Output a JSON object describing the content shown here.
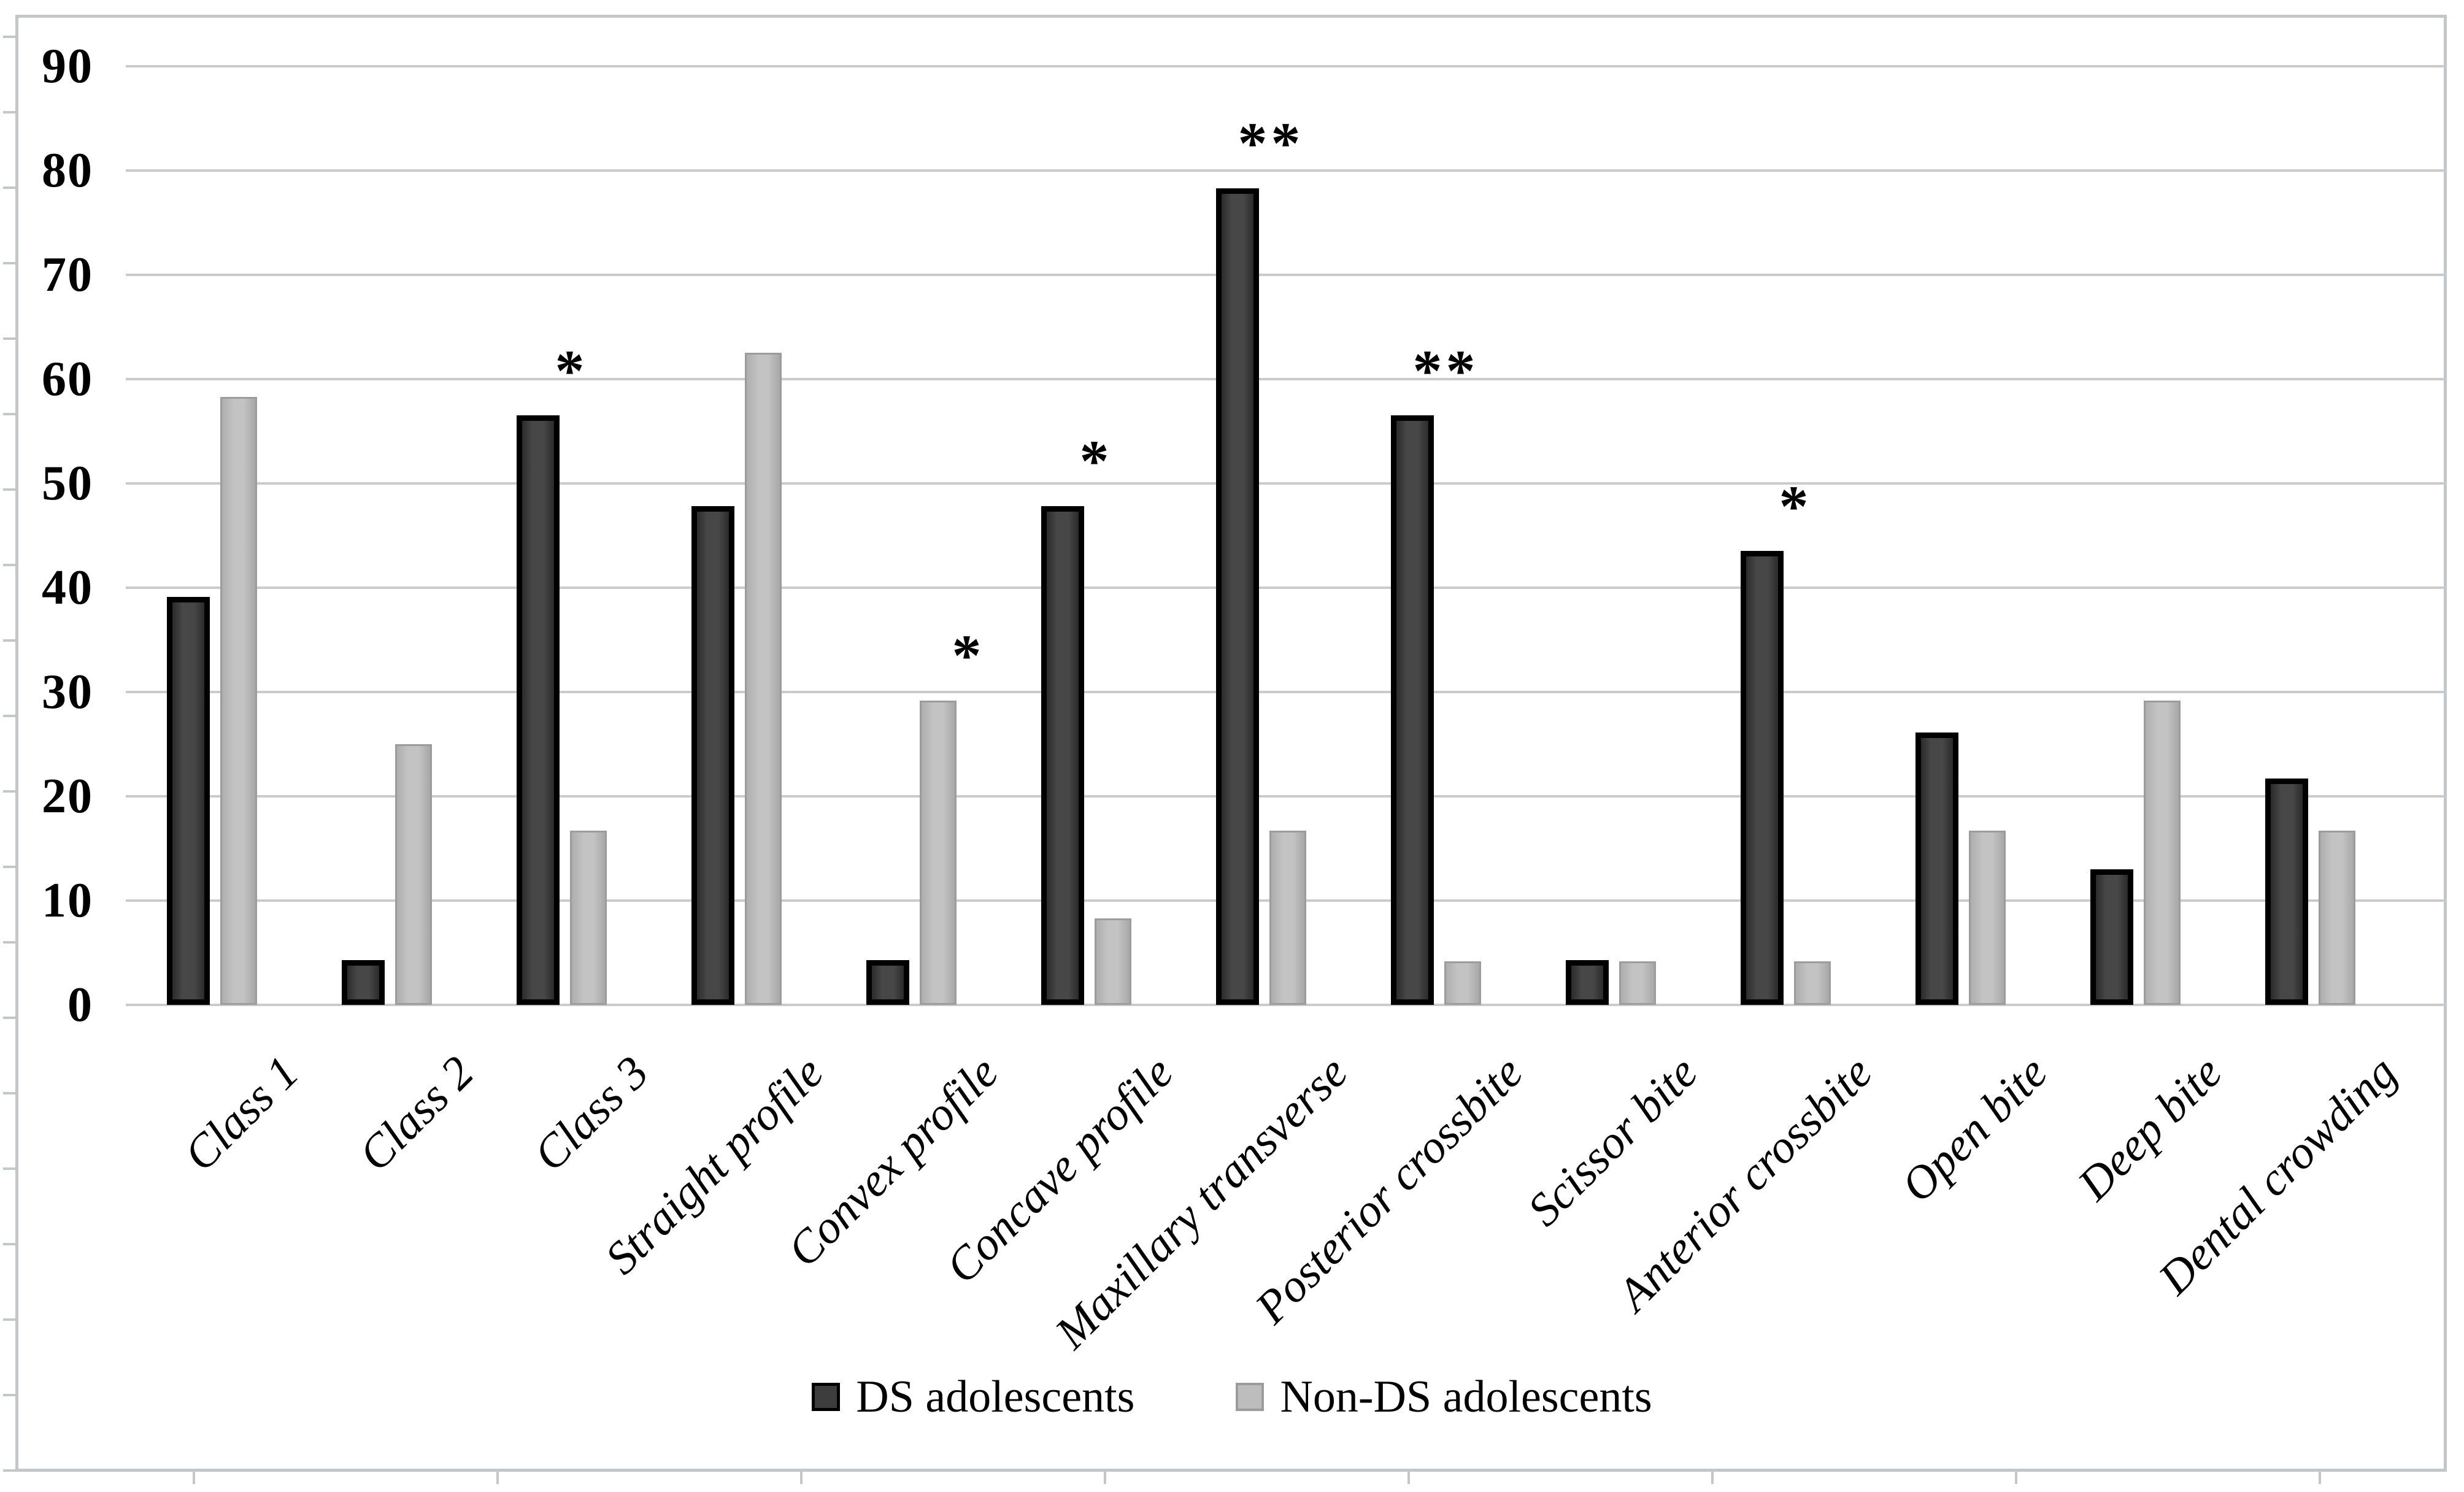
{
  "figure": {
    "kind": "grouped-bar-chart-figure",
    "background": "#ffffff",
    "frame_color": "#c3c7ca"
  },
  "chart_data": {
    "type": "bar",
    "title": "",
    "xlabel": "",
    "ylabel": "",
    "grid": true,
    "legend_position": "bottom-center",
    "categories": [
      "Class 1",
      "Class 2",
      "Class 3",
      "Straight profile",
      "Convex profile",
      "Concave profile",
      "Maxillary transverse",
      "Posterior crossbite",
      "Scissor bite",
      "Anterior crossbite",
      "Open bite",
      "Deep bite",
      "Dental crowding"
    ],
    "series": [
      {
        "name": "DS adolescents",
        "values": [
          39.1,
          4.3,
          56.5,
          47.8,
          4.3,
          47.8,
          78.3,
          56.5,
          4.3,
          43.5,
          26.1,
          13.0,
          21.7
        ],
        "fill_color": "#3d3d3d",
        "border_color": "#000000"
      },
      {
        "name": "Non-DS adolescents",
        "values": [
          58.3,
          25.0,
          16.7,
          62.5,
          29.2,
          8.3,
          16.7,
          4.2,
          4.2,
          4.2,
          16.7,
          29.2,
          16.7
        ],
        "fill_color": "#bdbdbd",
        "border_color": "#9c9c9c"
      }
    ],
    "annotations": [
      {
        "category": "Class 3",
        "series": 0,
        "text": "*"
      },
      {
        "category": "Convex profile",
        "series": 1,
        "text": "*"
      },
      {
        "category": "Concave profile",
        "series": 0,
        "text": "*"
      },
      {
        "category": "Maxillary transverse",
        "series": 0,
        "text": "**"
      },
      {
        "category": "Posterior crossbite",
        "series": 0,
        "text": "**"
      },
      {
        "category": "Anterior crossbite",
        "series": 0,
        "text": "*"
      }
    ],
    "y_axis": {
      "min": 0,
      "max": 90,
      "step": 10,
      "tick_labels": [
        "0",
        "10",
        "20",
        "30",
        "40",
        "50",
        "60",
        "70",
        "80",
        "90"
      ]
    },
    "gridline_color": "#cbcbcb"
  }
}
